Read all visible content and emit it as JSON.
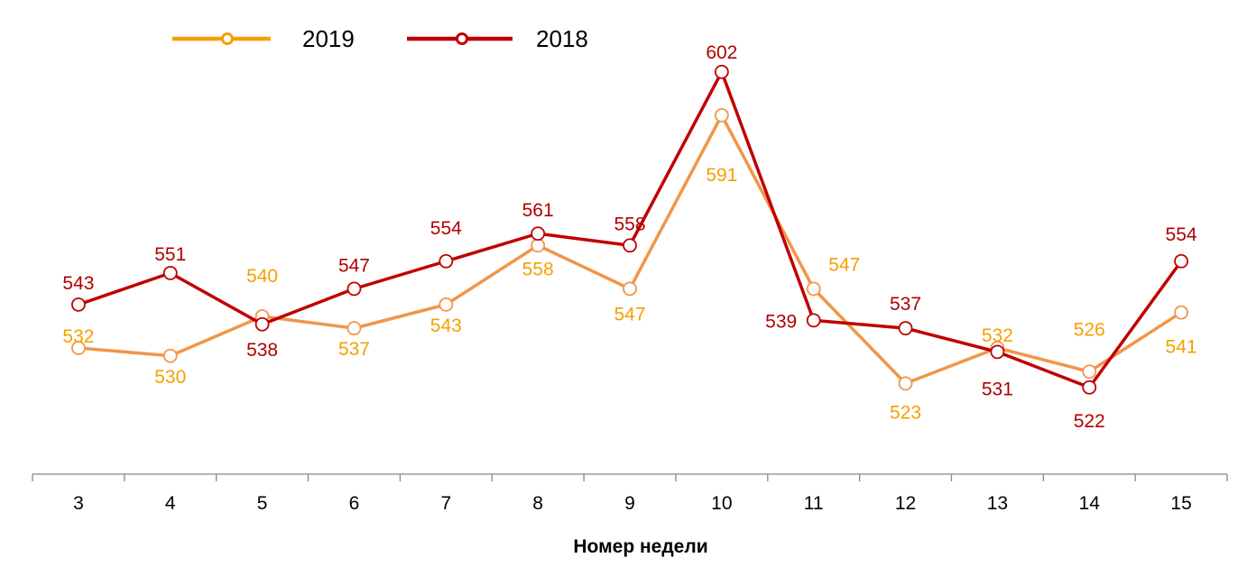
{
  "chart_data": {
    "type": "line",
    "title": "",
    "xlabel": "Номер недели",
    "ylabel": "",
    "categories": [
      "3",
      "4",
      "5",
      "6",
      "7",
      "8",
      "9",
      "10",
      "11",
      "12",
      "13",
      "14",
      "15"
    ],
    "ylim": [
      500,
      620
    ],
    "grid": false,
    "legend_placement": "top-left",
    "series": [
      {
        "name": "2019",
        "line_color": "#F0964A",
        "label_color": "#F5A000",
        "legend_color": "#F5A000",
        "values": [
          532,
          530,
          540,
          537,
          543,
          558,
          547,
          591,
          547,
          523,
          532,
          526,
          541
        ]
      },
      {
        "name": "2018",
        "line_color": "#C00000",
        "label_color": "#B00000",
        "legend_color": "#C00000",
        "values": [
          543,
          551,
          538,
          547,
          554,
          561,
          558,
          602,
          539,
          537,
          531,
          522,
          554
        ]
      }
    ]
  }
}
